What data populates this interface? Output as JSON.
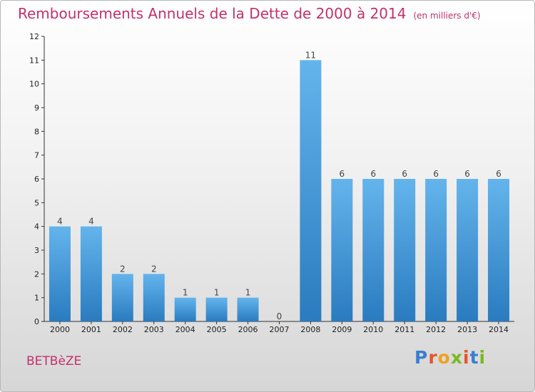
{
  "header": {
    "title": "Remboursements Annuels de la Dette de 2000 à 2014",
    "unit": "(en milliers d'€)"
  },
  "footer": {
    "commune": "BETBèZE",
    "logo": {
      "text": "Proxiti",
      "letter_colors": [
        "#3a7fd0",
        "#e8552c",
        "#f0a020",
        "#7ab826",
        "#e8552c",
        "#3a7fd0",
        "#7ab826"
      ]
    }
  },
  "colors": {
    "title": "#c5306a",
    "bar_top": "#64b4ec",
    "bar_bottom": "#2a7bbf",
    "axis": "#333333"
  },
  "chart_data": {
    "type": "bar",
    "title": "Remboursements Annuels de la Dette de 2000 à 2014",
    "xlabel": "",
    "ylabel": "",
    "ylim": [
      0,
      12
    ],
    "yticks": [
      0,
      1,
      2,
      3,
      4,
      5,
      6,
      7,
      8,
      9,
      10,
      11,
      12
    ],
    "categories": [
      "2000",
      "2001",
      "2002",
      "2003",
      "2004",
      "2005",
      "2006",
      "2007",
      "2008",
      "2009",
      "2010",
      "2011",
      "2012",
      "2013",
      "2014"
    ],
    "values": [
      4,
      4,
      2,
      2,
      1,
      1,
      1,
      0,
      11,
      6,
      6,
      6,
      6,
      6,
      6
    ],
    "grid": false,
    "legend": "none"
  }
}
